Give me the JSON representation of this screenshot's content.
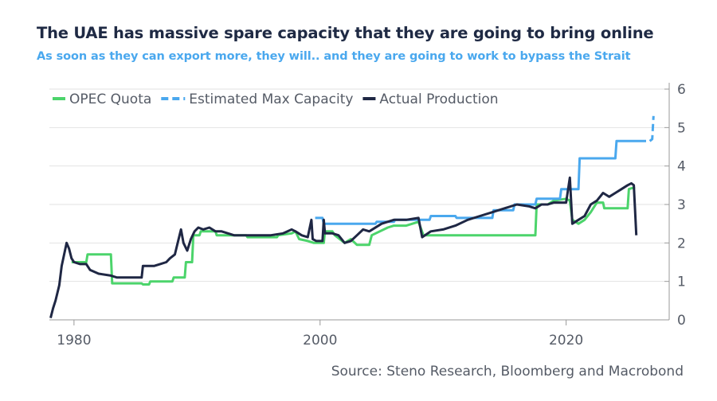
{
  "title": "The UAE has massive spare capacity that they are going to bring online",
  "subtitle": "As soon as they can export more, they will.. and they are going to work to bypass the Strait",
  "source": "Source: Steno Research, Bloomberg and Macrobond",
  "chart_data": {
    "type": "line",
    "xlim": [
      1978,
      2027.6
    ],
    "ylim": [
      0,
      6
    ],
    "y_ticks": [
      0,
      1,
      2,
      3,
      4,
      5,
      6
    ],
    "x_ticks": [
      1980,
      2000,
      2020
    ],
    "grid": true,
    "legend_position": "top-left",
    "series": [
      {
        "name": "OPEC Quota",
        "color": "#4cd46b",
        "step": true,
        "points": [
          [
            1979.8,
            1.5
          ],
          [
            1981.0,
            1.5
          ],
          [
            1981.1,
            1.7
          ],
          [
            1983.0,
            1.7
          ],
          [
            1983.1,
            0.95
          ],
          [
            1985.5,
            0.95
          ],
          [
            1985.6,
            0.92
          ],
          [
            1986.1,
            0.92
          ],
          [
            1986.2,
            1.0
          ],
          [
            1988.0,
            1.0
          ],
          [
            1988.1,
            1.1
          ],
          [
            1989.0,
            1.1
          ],
          [
            1989.1,
            1.5
          ],
          [
            1989.6,
            1.5
          ],
          [
            1989.7,
            2.2
          ],
          [
            1990.2,
            2.2
          ],
          [
            1990.3,
            2.3
          ],
          [
            1991.5,
            2.3
          ],
          [
            1991.6,
            2.2
          ],
          [
            1994.0,
            2.2
          ],
          [
            1994.1,
            2.15
          ],
          [
            1996.5,
            2.15
          ],
          [
            1996.6,
            2.2
          ],
          [
            1997.7,
            2.25
          ],
          [
            1998.0,
            2.3
          ],
          [
            1998.3,
            2.1
          ],
          [
            1999.0,
            2.05
          ],
          [
            1999.5,
            2.0
          ],
          [
            2000.3,
            2.0
          ],
          [
            2000.4,
            2.3
          ],
          [
            2001.0,
            2.3
          ],
          [
            2001.2,
            2.2
          ],
          [
            2002.0,
            2.0
          ],
          [
            2002.5,
            2.1
          ],
          [
            2003.0,
            1.95
          ],
          [
            2004.0,
            1.95
          ],
          [
            2004.2,
            2.2
          ],
          [
            2005.5,
            2.4
          ],
          [
            2006.0,
            2.45
          ],
          [
            2007.0,
            2.45
          ],
          [
            2008.0,
            2.55
          ],
          [
            2008.4,
            2.2
          ],
          [
            2010.0,
            2.2
          ],
          [
            2012.0,
            2.2
          ],
          [
            2015.5,
            2.2
          ],
          [
            2017.5,
            2.2
          ],
          [
            2017.6,
            3.0
          ],
          [
            2018.5,
            3.0
          ],
          [
            2019.0,
            3.1
          ],
          [
            2020.0,
            3.15
          ],
          [
            2020.3,
            3.1
          ],
          [
            2020.5,
            2.6
          ],
          [
            2021.0,
            2.5
          ],
          [
            2021.5,
            2.6
          ],
          [
            2022.0,
            2.8
          ],
          [
            2022.5,
            3.05
          ],
          [
            2023.0,
            3.05
          ],
          [
            2023.1,
            2.9
          ],
          [
            2025.0,
            2.9
          ],
          [
            2025.1,
            3.4
          ],
          [
            2025.6,
            3.45
          ]
        ]
      },
      {
        "name": "Estimated Max Capacity",
        "color": "#4aa8ee",
        "step": true,
        "points": [
          [
            1999.6,
            2.65
          ],
          [
            2000.2,
            2.65
          ],
          [
            2000.3,
            2.5
          ],
          [
            2004.5,
            2.5
          ],
          [
            2004.6,
            2.55
          ],
          [
            2006.0,
            2.55
          ],
          [
            2006.1,
            2.6
          ],
          [
            2008.9,
            2.6
          ],
          [
            2009.0,
            2.7
          ],
          [
            2011.0,
            2.7
          ],
          [
            2011.1,
            2.65
          ],
          [
            2014.0,
            2.65
          ],
          [
            2014.1,
            2.85
          ],
          [
            2015.7,
            2.85
          ],
          [
            2015.8,
            3.0
          ],
          [
            2017.5,
            3.0
          ],
          [
            2017.6,
            3.15
          ],
          [
            2019.5,
            3.15
          ],
          [
            2019.6,
            3.4
          ],
          [
            2021.0,
            3.4
          ],
          [
            2021.1,
            4.2
          ],
          [
            2024.0,
            4.2
          ],
          [
            2024.1,
            4.65
          ],
          [
            2026.5,
            4.65
          ]
        ]
      },
      {
        "name": "Estimated Max Capacity (dashed projection)",
        "color": "#4aa8ee",
        "dashed": true,
        "points": [
          [
            2026.8,
            4.65
          ],
          [
            2027.0,
            4.7
          ],
          [
            2027.1,
            5.3
          ]
        ]
      },
      {
        "name": "Actual Production",
        "color": "#1f2744",
        "points": [
          [
            1978.1,
            0.05
          ],
          [
            1978.3,
            0.3
          ],
          [
            1978.5,
            0.5
          ],
          [
            1978.8,
            0.9
          ],
          [
            1979.0,
            1.4
          ],
          [
            1979.2,
            1.7
          ],
          [
            1979.4,
            2.0
          ],
          [
            1979.6,
            1.85
          ],
          [
            1979.8,
            1.6
          ],
          [
            1980.0,
            1.5
          ],
          [
            1980.5,
            1.45
          ],
          [
            1981.0,
            1.45
          ],
          [
            1981.3,
            1.3
          ],
          [
            1982.0,
            1.2
          ],
          [
            1983.0,
            1.15
          ],
          [
            1983.5,
            1.1
          ],
          [
            1984.0,
            1.1
          ],
          [
            1985.0,
            1.1
          ],
          [
            1985.5,
            1.1
          ],
          [
            1985.6,
            1.4
          ],
          [
            1986.5,
            1.4
          ],
          [
            1987.0,
            1.45
          ],
          [
            1987.5,
            1.5
          ],
          [
            1987.8,
            1.6
          ],
          [
            1988.2,
            1.7
          ],
          [
            1988.5,
            2.1
          ],
          [
            1988.7,
            2.35
          ],
          [
            1988.9,
            2.0
          ],
          [
            1989.2,
            1.8
          ],
          [
            1989.5,
            2.1
          ],
          [
            1989.8,
            2.3
          ],
          [
            1990.1,
            2.4
          ],
          [
            1990.5,
            2.35
          ],
          [
            1991.0,
            2.4
          ],
          [
            1991.5,
            2.3
          ],
          [
            1992.0,
            2.3
          ],
          [
            1993.0,
            2.2
          ],
          [
            1994.0,
            2.2
          ],
          [
            1995.0,
            2.2
          ],
          [
            1996.0,
            2.2
          ],
          [
            1997.0,
            2.25
          ],
          [
            1997.7,
            2.35
          ],
          [
            1998.0,
            2.3
          ],
          [
            1998.5,
            2.2
          ],
          [
            1999.0,
            2.15
          ],
          [
            1999.3,
            2.6
          ],
          [
            1999.4,
            2.1
          ],
          [
            1999.7,
            2.05
          ],
          [
            2000.2,
            2.05
          ],
          [
            2000.3,
            2.6
          ],
          [
            2000.4,
            2.25
          ],
          [
            2001.0,
            2.25
          ],
          [
            2001.5,
            2.2
          ],
          [
            2002.0,
            2.0
          ],
          [
            2002.5,
            2.05
          ],
          [
            2003.0,
            2.2
          ],
          [
            2003.5,
            2.35
          ],
          [
            2004.0,
            2.3
          ],
          [
            2005.0,
            2.5
          ],
          [
            2006.0,
            2.6
          ],
          [
            2007.0,
            2.6
          ],
          [
            2008.0,
            2.65
          ],
          [
            2008.3,
            2.15
          ],
          [
            2009.0,
            2.3
          ],
          [
            2010.0,
            2.35
          ],
          [
            2011.0,
            2.45
          ],
          [
            2012.0,
            2.6
          ],
          [
            2013.0,
            2.7
          ],
          [
            2014.0,
            2.8
          ],
          [
            2015.0,
            2.9
          ],
          [
            2016.0,
            3.0
          ],
          [
            2017.0,
            2.95
          ],
          [
            2017.5,
            2.9
          ],
          [
            2018.0,
            3.0
          ],
          [
            2018.5,
            3.0
          ],
          [
            2019.0,
            3.05
          ],
          [
            2020.0,
            3.05
          ],
          [
            2020.3,
            3.7
          ],
          [
            2020.5,
            2.5
          ],
          [
            2021.0,
            2.6
          ],
          [
            2021.5,
            2.7
          ],
          [
            2022.0,
            3.0
          ],
          [
            2022.5,
            3.1
          ],
          [
            2023.0,
            3.3
          ],
          [
            2023.5,
            3.2
          ],
          [
            2024.0,
            3.3
          ],
          [
            2024.5,
            3.4
          ],
          [
            2025.0,
            3.5
          ],
          [
            2025.3,
            3.55
          ],
          [
            2025.5,
            3.5
          ],
          [
            2025.7,
            2.2
          ]
        ]
      }
    ]
  }
}
